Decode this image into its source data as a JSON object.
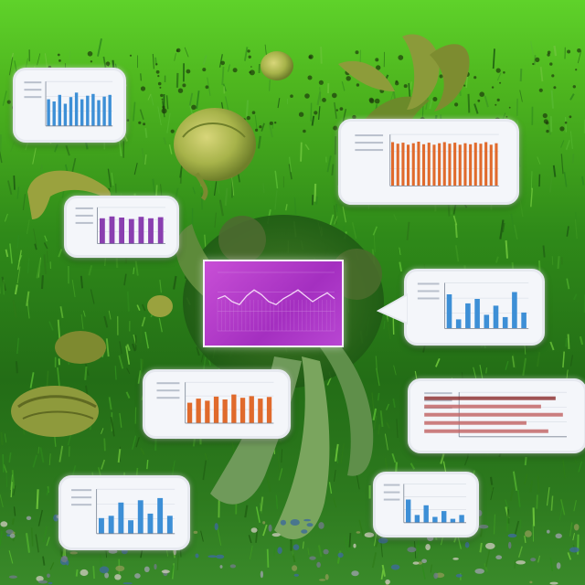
{
  "header": {
    "text": ""
  },
  "colors": {
    "sky_top": "#5fd22a",
    "grass_dark": "#236d16",
    "creature_body": "#a7b34a",
    "panel_bg": "#f4f6fa",
    "bar_blue": "#3d8fd6",
    "bar_orange": "#e06a2c",
    "bar_purple": "#8a3fb0",
    "center_panel": "#b43ecc"
  },
  "panels": [
    {
      "id": "top-left",
      "kind": "bars",
      "bar_color": "#3d8fd6",
      "values": [
        0.6,
        0.55,
        0.7,
        0.5,
        0.65,
        0.75,
        0.6,
        0.68,
        0.72,
        0.58,
        0.66,
        0.7
      ]
    },
    {
      "id": "top-right",
      "kind": "bars",
      "bar_color": "#e06a2c",
      "values": [
        0.85,
        0.82,
        0.84,
        0.8,
        0.83,
        0.86,
        0.81,
        0.84,
        0.8,
        0.83,
        0.85,
        0.82,
        0.84,
        0.8,
        0.83,
        0.81,
        0.84,
        0.82,
        0.85,
        0.8,
        0.83
      ]
    },
    {
      "id": "mid-left",
      "kind": "bars",
      "bar_color": "#8a3fb0",
      "values": [
        0.7,
        0.75,
        0.72,
        0.68,
        0.74,
        0.7,
        0.73
      ]
    },
    {
      "id": "mid-right",
      "kind": "bars",
      "bar_color": "#3d8fd6",
      "values": [
        0.75,
        0.2,
        0.55,
        0.65,
        0.3,
        0.5,
        0.25,
        0.8,
        0.35
      ]
    },
    {
      "id": "lower-left",
      "kind": "bars",
      "bar_color": "#e06a2c",
      "values": [
        0.5,
        0.6,
        0.55,
        0.65,
        0.58,
        0.7,
        0.62,
        0.66,
        0.6,
        0.64
      ]
    },
    {
      "id": "lower-right",
      "kind": "textbars",
      "bar_color": "#b03030",
      "values": [
        0.9,
        0.8,
        0.95,
        0.7,
        0.85
      ]
    },
    {
      "id": "bottom-left",
      "kind": "bars",
      "bar_color": "#3d8fd6",
      "values": [
        0.35,
        0.4,
        0.7,
        0.3,
        0.75,
        0.45,
        0.8,
        0.4
      ]
    },
    {
      "id": "bottom-right",
      "kind": "bars",
      "bar_color": "#3d8fd6",
      "values": [
        0.6,
        0.2,
        0.45,
        0.15,
        0.3,
        0.1,
        0.2
      ]
    }
  ],
  "center_chart": {
    "line_color": "#f3d6f7",
    "values": [
      0.55,
      0.6,
      0.5,
      0.45,
      0.6,
      0.7,
      0.62,
      0.5,
      0.45,
      0.55,
      0.62,
      0.7,
      0.6,
      0.5,
      0.58,
      0.65,
      0.55
    ]
  }
}
